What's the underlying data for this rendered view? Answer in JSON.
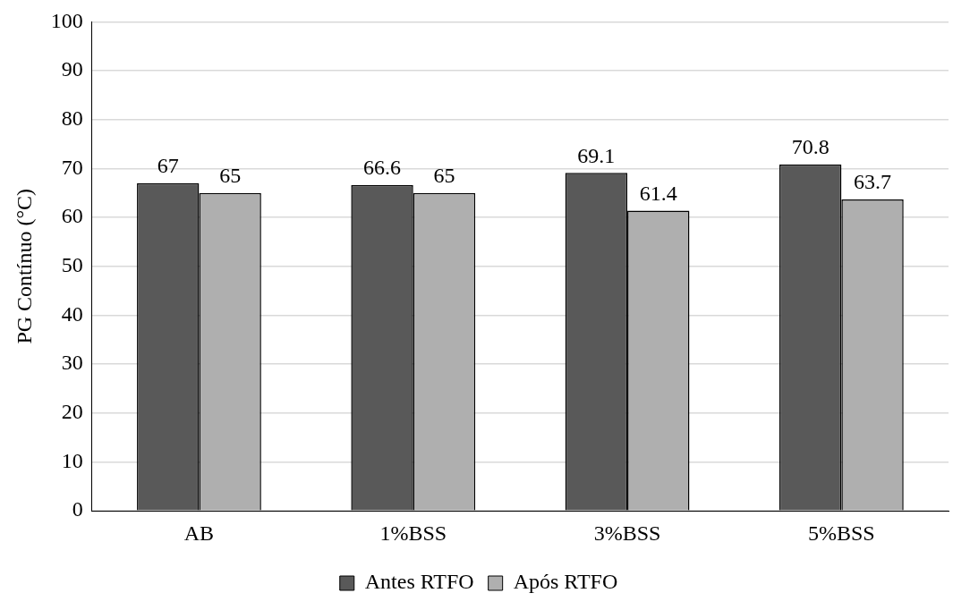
{
  "chart_data": {
    "type": "bar",
    "ylabel": "PG Contínuo (°C)",
    "categories": [
      "AB",
      "1%BSS",
      "3%BSS",
      "5%BSS"
    ],
    "series": [
      {
        "name": "Antes RTFO",
        "color": "#595959",
        "values": [
          67,
          66.6,
          69.1,
          70.8
        ]
      },
      {
        "name": "Após RTFO",
        "color": "#afafaf",
        "values": [
          65,
          65,
          61.4,
          63.7
        ]
      }
    ],
    "ylim": [
      0,
      100
    ],
    "yticks": [
      0,
      10,
      20,
      30,
      40,
      50,
      60,
      70,
      80,
      90,
      100
    ],
    "grid": "y",
    "legend": "bottom",
    "data_labels": true
  }
}
